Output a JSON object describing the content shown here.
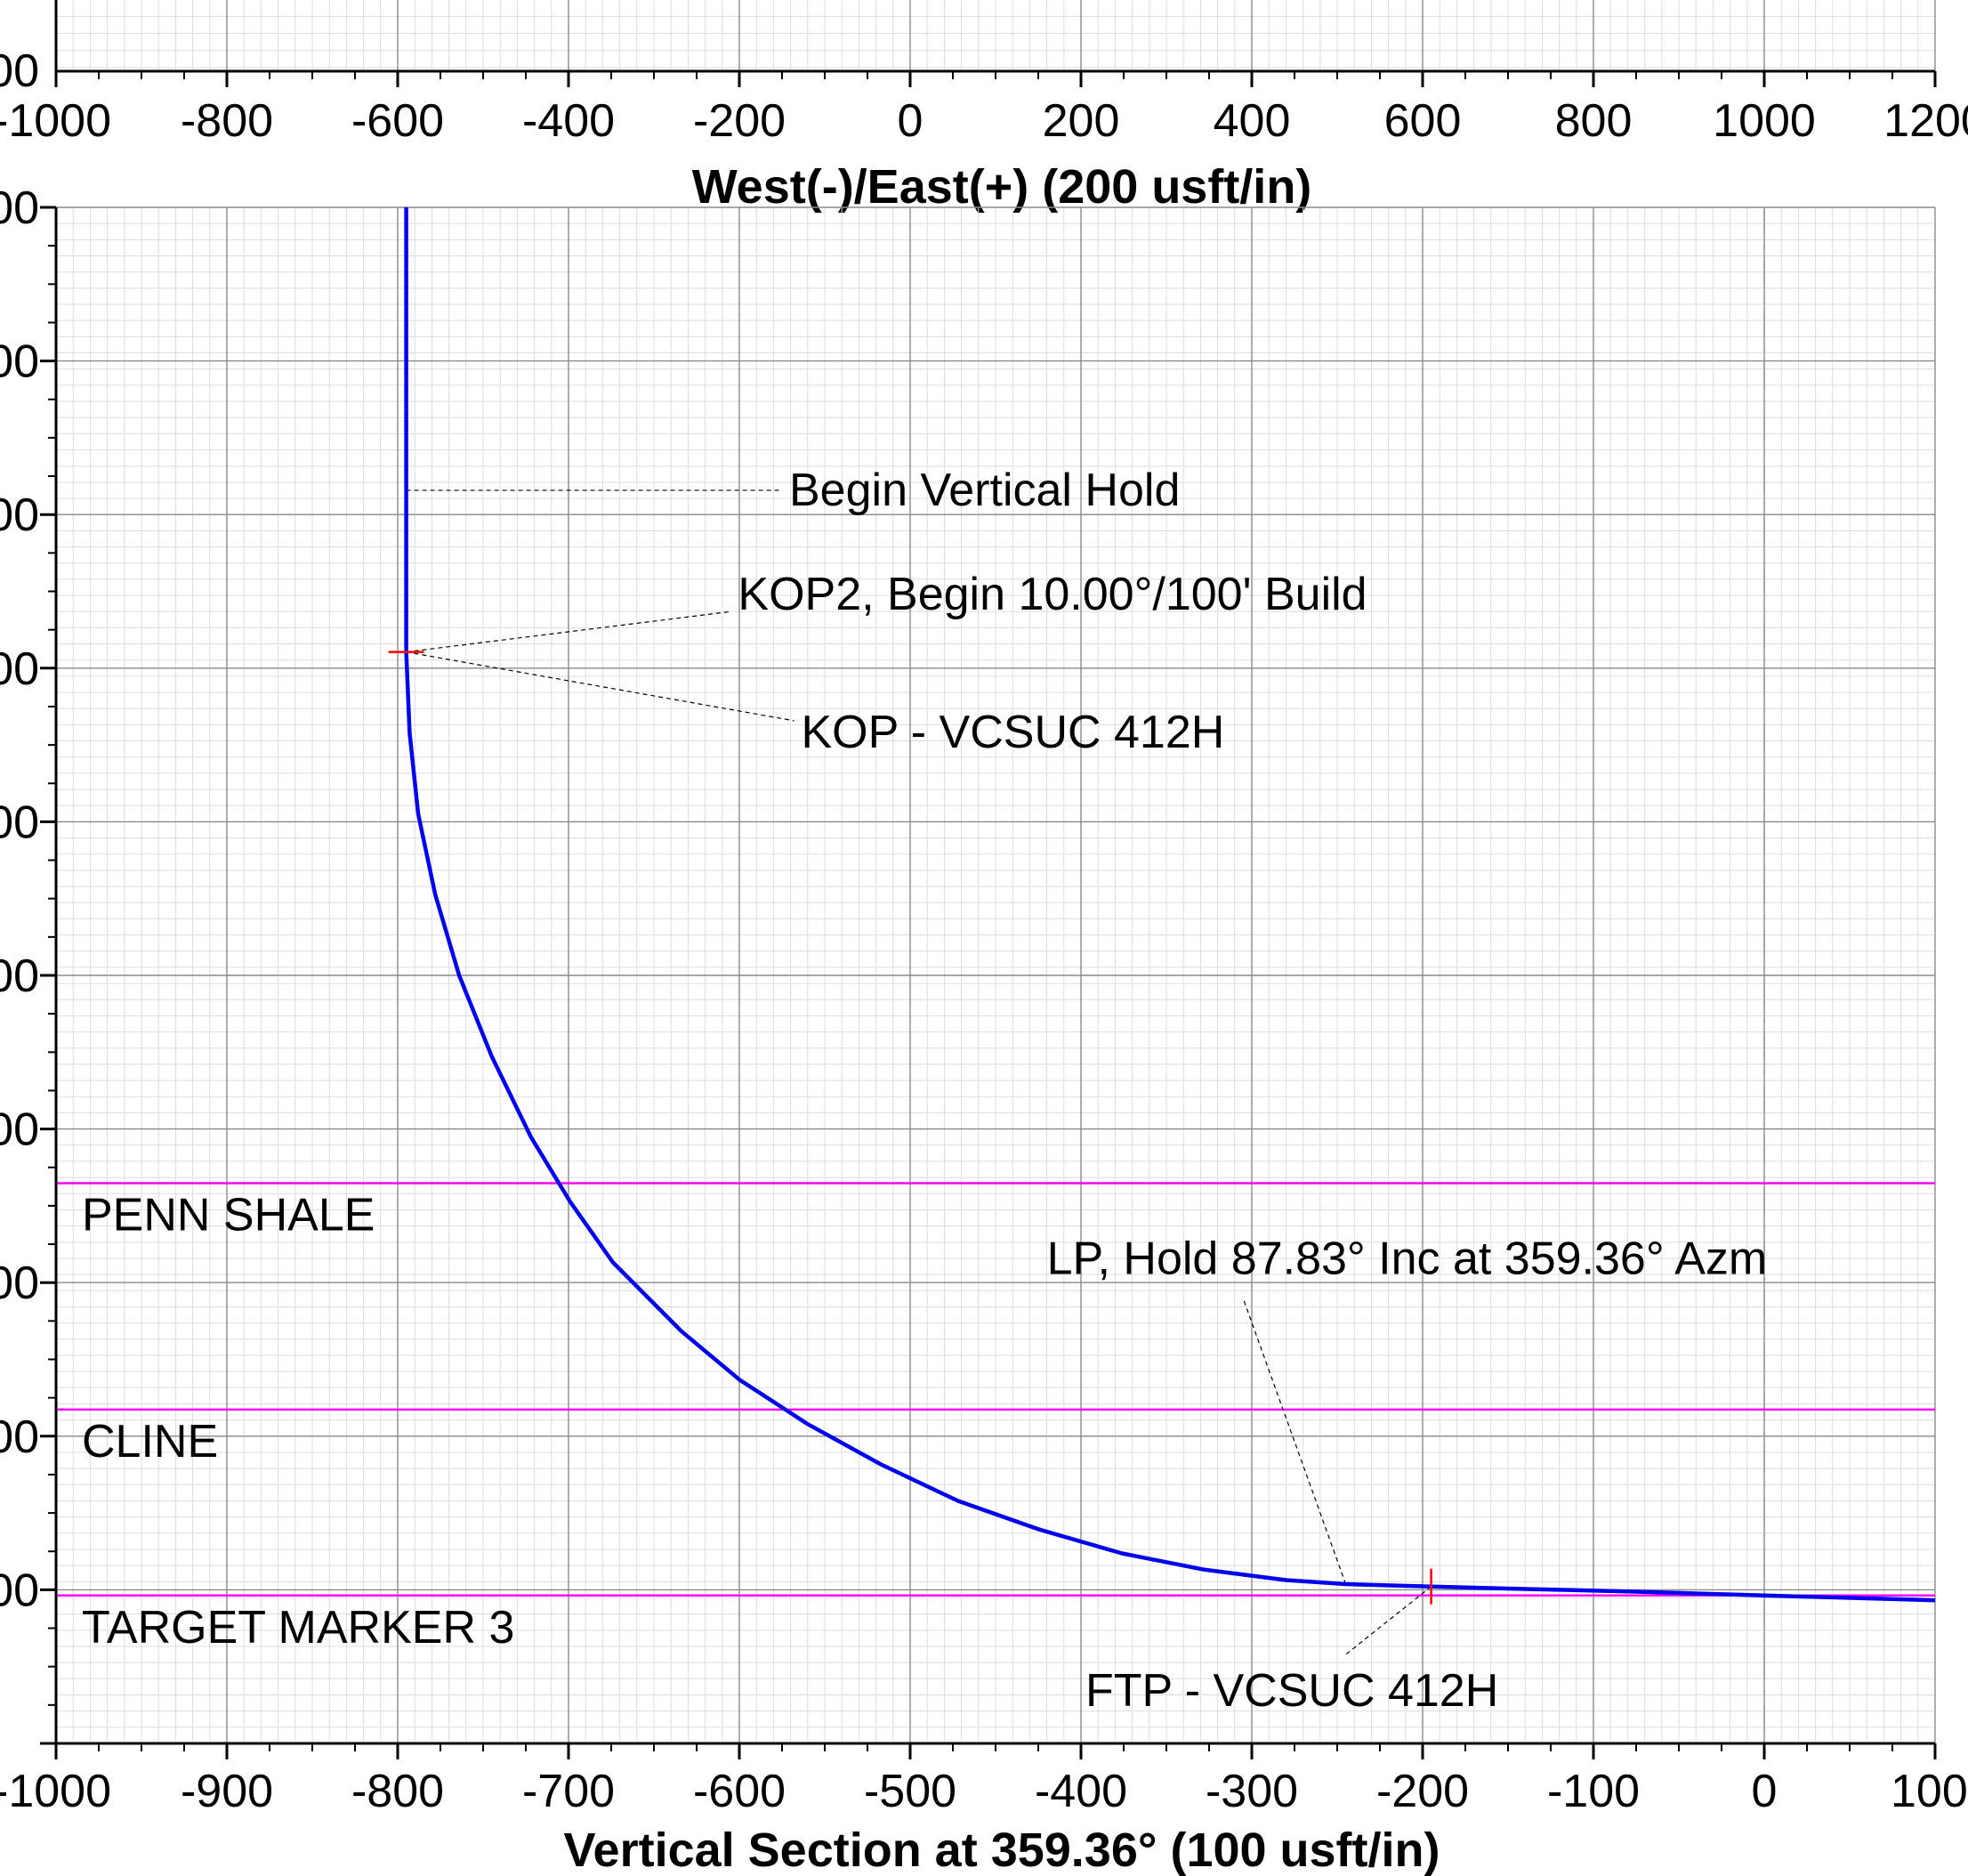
{
  "chart_data": [
    {
      "type": "line",
      "xlabel": "West(-)/East(+) (200 usft/in)",
      "ylabel": "",
      "x_ticks": [
        "-1000",
        "-800",
        "-600",
        "-400",
        "-200",
        "0",
        "200",
        "400",
        "600",
        "800",
        "1000",
        "1200"
      ],
      "xlim": [
        -1000,
        1200
      ],
      "grid": true,
      "y_tick_fragments": [
        "00"
      ],
      "series": []
    },
    {
      "type": "line",
      "xlabel": "Vertical Section at 359.36° (100 usft/in)",
      "ylabel": "",
      "x_ticks": [
        "-1000",
        "-900",
        "-800",
        "-700",
        "-600",
        "-500",
        "-400",
        "-300",
        "-200",
        "-100",
        "0",
        "100"
      ],
      "y_tick_fragments": [
        "00",
        "00",
        "00",
        "00",
        "00",
        "00",
        "00",
        "00",
        "00",
        "00"
      ],
      "xlim": [
        -1000,
        100
      ],
      "grid": true,
      "reference_line_x": 0,
      "series": [
        {
          "color": "#0000ee",
          "points": [
            [
              -795,
              0
            ],
            [
              -795,
              100
            ],
            [
              -795,
              200
            ],
            [
              -795,
              300
            ],
            [
              -793,
              400
            ],
            [
              -788,
              500
            ],
            [
              -778,
              600
            ],
            [
              -764,
              700
            ],
            [
              -745,
              800
            ],
            [
              -722,
              900
            ],
            [
              -699,
              980
            ],
            [
              -674,
              1055
            ],
            [
              -634,
              1140
            ],
            [
              -600,
              1200
            ],
            [
              -560,
              1255
            ],
            [
              -517,
              1305
            ],
            [
              -472,
              1350
            ],
            [
              -425,
              1385
            ],
            [
              -376,
              1415
            ],
            [
              -328,
              1435
            ],
            [
              -280,
              1448
            ],
            [
              -245,
              1453
            ],
            [
              -195,
              1456
            ],
            [
              -140,
              1459
            ],
            [
              -80,
              1462
            ],
            [
              0,
              1467
            ],
            [
              100,
              1473
            ]
          ]
        }
      ],
      "formation_markers": [
        {
          "name": "PENN SHALE",
          "depth": 957,
          "color": "#ff00ff"
        },
        {
          "name": "CLINE",
          "depth": 1237,
          "color": "#ff00ff"
        },
        {
          "name": "TARGET MARKER 3",
          "depth": 1467,
          "color": "#ff00ff"
        }
      ],
      "annotations": [
        {
          "text": "Begin Vertical Hold",
          "x": -795,
          "y": 100,
          "tx": -575,
          "ty": 100
        },
        {
          "text": "KOP2, Begin 10.00°/100' Build",
          "x": -795,
          "y": 300,
          "tx": -605,
          "ty": 250
        },
        {
          "text": "KOP - VCSUC 412H",
          "x": -795,
          "y": 300,
          "tx": -568,
          "ty": 385
        },
        {
          "text": "LP, Hold 87.83° Inc at 359.36° Azm",
          "x": -245,
          "y": 1453,
          "tx": -305,
          "ty": 1100
        },
        {
          "text": "FTP - VCSUC 412H",
          "x": -195,
          "y": 1456,
          "tx": -245,
          "ty": 1540
        }
      ],
      "markers": [
        {
          "x": -795,
          "y": 300,
          "color": "#ff0000"
        },
        {
          "x": -195,
          "y": 1456,
          "color": "#ff0000"
        }
      ]
    }
  ]
}
